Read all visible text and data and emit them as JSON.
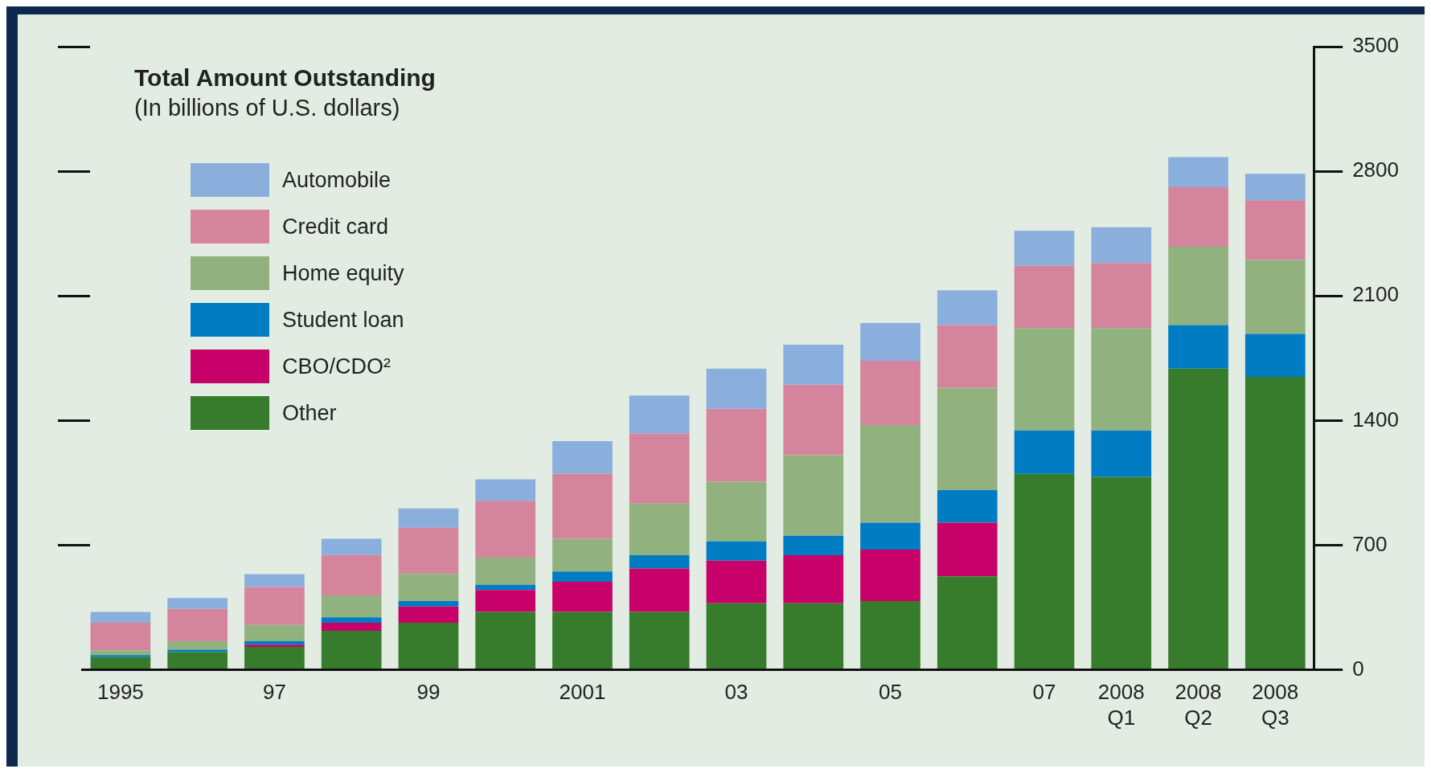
{
  "chart_data": {
    "type": "bar",
    "title": "Total Amount Outstanding",
    "subtitle": "(In billions of U.S. dollars)",
    "categories": [
      "1995",
      null,
      "97",
      null,
      "99",
      null,
      "2001",
      null,
      "03",
      null,
      "05",
      null,
      "07",
      "2008 Q1",
      "2008 Q2",
      "2008 Q3"
    ],
    "stacked": true,
    "series": [
      {
        "name": "Other",
        "color": "#377c2c",
        "values": [
          72,
          100,
          129,
          219,
          265,
          325,
          325,
          325,
          374,
          374,
          386,
          525,
          1100,
          1083,
          1691,
          1645
        ]
      },
      {
        "name": "CBO/CDO²",
        "color": "#c8006a",
        "values": [
          0,
          0,
          13,
          46,
          91,
          123,
          170,
          244,
          239,
          269,
          289,
          301,
          0,
          0,
          0,
          0
        ]
      },
      {
        "name": "Student loan",
        "color": "#007cc3",
        "values": [
          11,
          13,
          19,
          30,
          30,
          30,
          57,
          74,
          108,
          110,
          151,
          183,
          244,
          261,
          245,
          242
        ]
      },
      {
        "name": "Home equity",
        "color": "#91b27e",
        "values": [
          27,
          48,
          91,
          123,
          153,
          152,
          184,
          291,
          335,
          452,
          548,
          575,
          575,
          575,
          440,
          415
        ]
      },
      {
        "name": "Credit card",
        "color": "#d5849e",
        "values": [
          155,
          181,
          213,
          227,
          259,
          319,
          366,
          393,
          410,
          396,
          361,
          352,
          351,
          366,
          334,
          335
        ]
      },
      {
        "name": "Automobile",
        "color": "#8aafdc",
        "values": [
          60,
          61,
          72,
          91,
          108,
          121,
          182,
          213,
          225,
          225,
          213,
          195,
          196,
          201,
          169,
          149
        ]
      }
    ],
    "ylim": [
      0,
      3500
    ],
    "yticks": [
      0,
      700,
      1400,
      2100,
      2800,
      3500
    ],
    "grid": false,
    "legend": "top left"
  }
}
